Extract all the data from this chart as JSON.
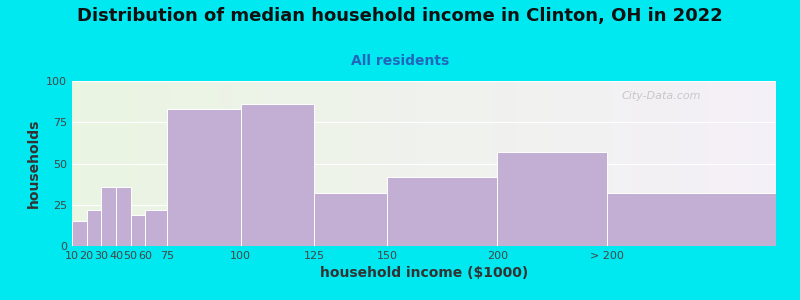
{
  "title": "Distribution of median household income in Clinton, OH in 2022",
  "subtitle": "All residents",
  "xlabel": "household income ($1000)",
  "ylabel": "households",
  "bar_color": "#c4afd4",
  "background_outer": "#00e8f0",
  "ylim": [
    0,
    100
  ],
  "yticks": [
    0,
    25,
    50,
    75,
    100
  ],
  "xtick_labels": [
    "10",
    "20",
    "30",
    "40",
    "50",
    "60",
    "75",
    "100",
    "125",
    "150",
    "200",
    "> 200"
  ],
  "values": [
    15,
    22,
    36,
    36,
    19,
    22,
    83,
    86,
    32,
    42,
    57,
    32
  ],
  "bar_lefts": [
    0,
    10,
    20,
    30,
    40,
    50,
    65,
    115,
    165,
    215,
    290,
    365
  ],
  "bar_rights": [
    10,
    20,
    30,
    40,
    50,
    65,
    115,
    165,
    215,
    290,
    365,
    480
  ],
  "xtick_positions": [
    0,
    10,
    20,
    30,
    40,
    50,
    65,
    115,
    165,
    215,
    290,
    365
  ],
  "title_fontsize": 13,
  "subtitle_fontsize": 10,
  "axis_label_fontsize": 10,
  "tick_fontsize": 8,
  "watermark_text": "City-Data.com"
}
